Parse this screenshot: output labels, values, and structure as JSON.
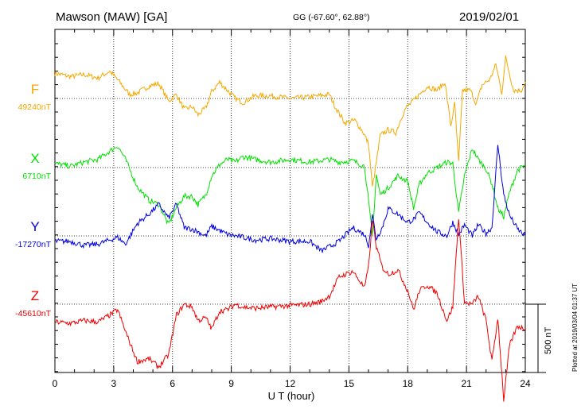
{
  "header": {
    "station": "Mawson (MAW)  [GA]",
    "coords": "GG (-67.60°,  62.88°)",
    "date": "2019/02/01"
  },
  "footer": {
    "xlabel": "U T (hour)",
    "plotted": "Plotted at 2019/03/04 01:37  UT",
    "scale": "500 nT"
  },
  "chart_data": {
    "type": "line",
    "title": "Mawson (MAW)  [GA]",
    "xlabel": "U T (hour)",
    "ylabel": "",
    "xlim": [
      0,
      24
    ],
    "xticks": [
      0,
      3,
      6,
      9,
      12,
      15,
      18,
      21,
      24
    ],
    "grid": true,
    "scale_bar_nT": 500,
    "series": [
      {
        "name": "F",
        "baseline": "49240nT",
        "color": "#f5a800",
        "points": [
          [
            0,
            185
          ],
          [
            0.8,
            160
          ],
          [
            1.5,
            175
          ],
          [
            2.2,
            150
          ],
          [
            2.8,
            200
          ],
          [
            3.3,
            120
          ],
          [
            3.8,
            30
          ],
          [
            4.2,
            40
          ],
          [
            4.8,
            90
          ],
          [
            5.3,
            110
          ],
          [
            5.8,
            -20
          ],
          [
            6.2,
            30
          ],
          [
            6.6,
            -80
          ],
          [
            7.0,
            -60
          ],
          [
            7.3,
            -120
          ],
          [
            7.7,
            -70
          ],
          [
            8.0,
            50
          ],
          [
            8.4,
            120
          ],
          [
            8.8,
            60
          ],
          [
            9.2,
            0
          ],
          [
            9.6,
            -30
          ],
          [
            10.2,
            20
          ],
          [
            11.0,
            20
          ],
          [
            12.0,
            0
          ],
          [
            13.0,
            10
          ],
          [
            14.0,
            30
          ],
          [
            14.3,
            -60
          ],
          [
            14.8,
            -180
          ],
          [
            15.3,
            -160
          ],
          [
            15.7,
            -240
          ],
          [
            16.0,
            -330
          ],
          [
            16.2,
            -650
          ],
          [
            16.4,
            -470
          ],
          [
            16.6,
            -270
          ],
          [
            17.0,
            -230
          ],
          [
            17.4,
            -250
          ],
          [
            17.7,
            -130
          ],
          [
            17.9,
            -70
          ],
          [
            18.2,
            -30
          ],
          [
            18.6,
            30
          ],
          [
            19.0,
            90
          ],
          [
            19.5,
            60
          ],
          [
            19.9,
            120
          ],
          [
            20.2,
            -200
          ],
          [
            20.4,
            -40
          ],
          [
            20.6,
            -470
          ],
          [
            20.8,
            60
          ],
          [
            21.2,
            60
          ],
          [
            21.5,
            -40
          ],
          [
            21.8,
            100
          ],
          [
            22.2,
            140
          ],
          [
            22.5,
            250
          ],
          [
            22.8,
            40
          ],
          [
            23.0,
            300
          ],
          [
            23.4,
            60
          ],
          [
            23.8,
            60
          ],
          [
            24,
            120
          ]
        ]
      },
      {
        "name": "X",
        "baseline": "6710nT",
        "color": "#00e000",
        "points": [
          [
            0,
            30
          ],
          [
            0.8,
            10
          ],
          [
            1.5,
            40
          ],
          [
            2.2,
            60
          ],
          [
            2.8,
            120
          ],
          [
            3.2,
            160
          ],
          [
            3.6,
            60
          ],
          [
            4.2,
            -140
          ],
          [
            4.8,
            -240
          ],
          [
            5.3,
            -270
          ],
          [
            5.8,
            -420
          ],
          [
            6.2,
            -290
          ],
          [
            6.6,
            -210
          ],
          [
            7.0,
            -210
          ],
          [
            7.3,
            -270
          ],
          [
            7.7,
            -200
          ],
          [
            8.0,
            -60
          ],
          [
            8.4,
            20
          ],
          [
            8.8,
            60
          ],
          [
            9.2,
            40
          ],
          [
            9.6,
            80
          ],
          [
            10.2,
            60
          ],
          [
            11.0,
            40
          ],
          [
            12.0,
            60
          ],
          [
            13.0,
            40
          ],
          [
            14.0,
            60
          ],
          [
            14.5,
            40
          ],
          [
            15.2,
            50
          ],
          [
            15.8,
            10
          ],
          [
            16.2,
            -500
          ],
          [
            16.4,
            -50
          ],
          [
            16.6,
            -200
          ],
          [
            17.0,
            -150
          ],
          [
            17.5,
            -60
          ],
          [
            18.0,
            -100
          ],
          [
            18.3,
            -300
          ],
          [
            18.6,
            -120
          ],
          [
            19.0,
            -40
          ],
          [
            19.5,
            0
          ],
          [
            20.0,
            40
          ],
          [
            20.3,
            30
          ],
          [
            20.6,
            -330
          ],
          [
            20.9,
            -60
          ],
          [
            21.3,
            140
          ],
          [
            21.6,
            60
          ],
          [
            22.0,
            -10
          ],
          [
            22.3,
            -120
          ],
          [
            22.6,
            -300
          ],
          [
            22.9,
            -360
          ],
          [
            23.2,
            -180
          ],
          [
            23.6,
            -20
          ],
          [
            24,
            20
          ]
        ]
      },
      {
        "name": "Y",
        "baseline": "-17270nT",
        "color": "#0000e0",
        "points": [
          [
            0,
            -40
          ],
          [
            0.8,
            -40
          ],
          [
            1.5,
            -70
          ],
          [
            2.2,
            -60
          ],
          [
            2.8,
            -30
          ],
          [
            3.2,
            -10
          ],
          [
            3.6,
            -60
          ],
          [
            4.2,
            90
          ],
          [
            4.8,
            160
          ],
          [
            5.3,
            230
          ],
          [
            5.8,
            130
          ],
          [
            6.2,
            230
          ],
          [
            6.6,
            60
          ],
          [
            7.0,
            50
          ],
          [
            7.3,
            30
          ],
          [
            7.7,
            0
          ],
          [
            8.0,
            70
          ],
          [
            8.4,
            40
          ],
          [
            8.8,
            10
          ],
          [
            9.2,
            0
          ],
          [
            9.6,
            -10
          ],
          [
            10.2,
            -30
          ],
          [
            11.0,
            -20
          ],
          [
            12.0,
            -40
          ],
          [
            13.0,
            -40
          ],
          [
            13.6,
            -110
          ],
          [
            14.0,
            -80
          ],
          [
            14.5,
            -40
          ],
          [
            15.2,
            60
          ],
          [
            15.8,
            10
          ],
          [
            16.0,
            -70
          ],
          [
            16.2,
            150
          ],
          [
            16.4,
            -20
          ],
          [
            16.7,
            60
          ],
          [
            17.0,
            200
          ],
          [
            17.5,
            160
          ],
          [
            18.0,
            100
          ],
          [
            18.3,
            120
          ],
          [
            18.6,
            170
          ],
          [
            19.0,
            100
          ],
          [
            19.5,
            30
          ],
          [
            20.0,
            0
          ],
          [
            20.3,
            100
          ],
          [
            20.6,
            10
          ],
          [
            20.9,
            80
          ],
          [
            21.3,
            0
          ],
          [
            21.6,
            80
          ],
          [
            22.0,
            20
          ],
          [
            22.3,
            60
          ],
          [
            22.6,
            670
          ],
          [
            22.9,
            300
          ],
          [
            23.2,
            150
          ],
          [
            23.6,
            50
          ],
          [
            24,
            0
          ]
        ]
      },
      {
        "name": "Z",
        "baseline": "-45610nT",
        "color": "#f00000",
        "points": [
          [
            0,
            -130
          ],
          [
            0.8,
            -140
          ],
          [
            1.5,
            -120
          ],
          [
            2.2,
            -130
          ],
          [
            2.8,
            -80
          ],
          [
            3.2,
            -40
          ],
          [
            3.6,
            -200
          ],
          [
            4.2,
            -420
          ],
          [
            4.8,
            -400
          ],
          [
            5.3,
            -460
          ],
          [
            5.8,
            -370
          ],
          [
            6.2,
            -80
          ],
          [
            6.6,
            0
          ],
          [
            7.0,
            -20
          ],
          [
            7.3,
            -120
          ],
          [
            7.7,
            -100
          ],
          [
            8.0,
            -180
          ],
          [
            8.4,
            -50
          ],
          [
            8.8,
            -40
          ],
          [
            9.2,
            0
          ],
          [
            9.6,
            -20
          ],
          [
            10.2,
            -30
          ],
          [
            11.0,
            -20
          ],
          [
            12.0,
            -10
          ],
          [
            13.0,
            0
          ],
          [
            13.6,
            20
          ],
          [
            14.0,
            60
          ],
          [
            14.5,
            200
          ],
          [
            15.2,
            240
          ],
          [
            15.8,
            120
          ],
          [
            16.0,
            270
          ],
          [
            16.2,
            620
          ],
          [
            16.4,
            420
          ],
          [
            16.7,
            270
          ],
          [
            17.0,
            220
          ],
          [
            17.5,
            250
          ],
          [
            18.0,
            100
          ],
          [
            18.3,
            -40
          ],
          [
            18.6,
            100
          ],
          [
            19.0,
            140
          ],
          [
            19.5,
            80
          ],
          [
            20.0,
            -120
          ],
          [
            20.3,
            -20
          ],
          [
            20.6,
            640
          ],
          [
            20.9,
            10
          ],
          [
            21.3,
            0
          ],
          [
            21.6,
            60
          ],
          [
            22.0,
            -120
          ],
          [
            22.3,
            -420
          ],
          [
            22.6,
            -100
          ],
          [
            22.9,
            -700
          ],
          [
            23.2,
            -300
          ],
          [
            23.6,
            -160
          ],
          [
            24,
            -180
          ]
        ]
      }
    ]
  }
}
